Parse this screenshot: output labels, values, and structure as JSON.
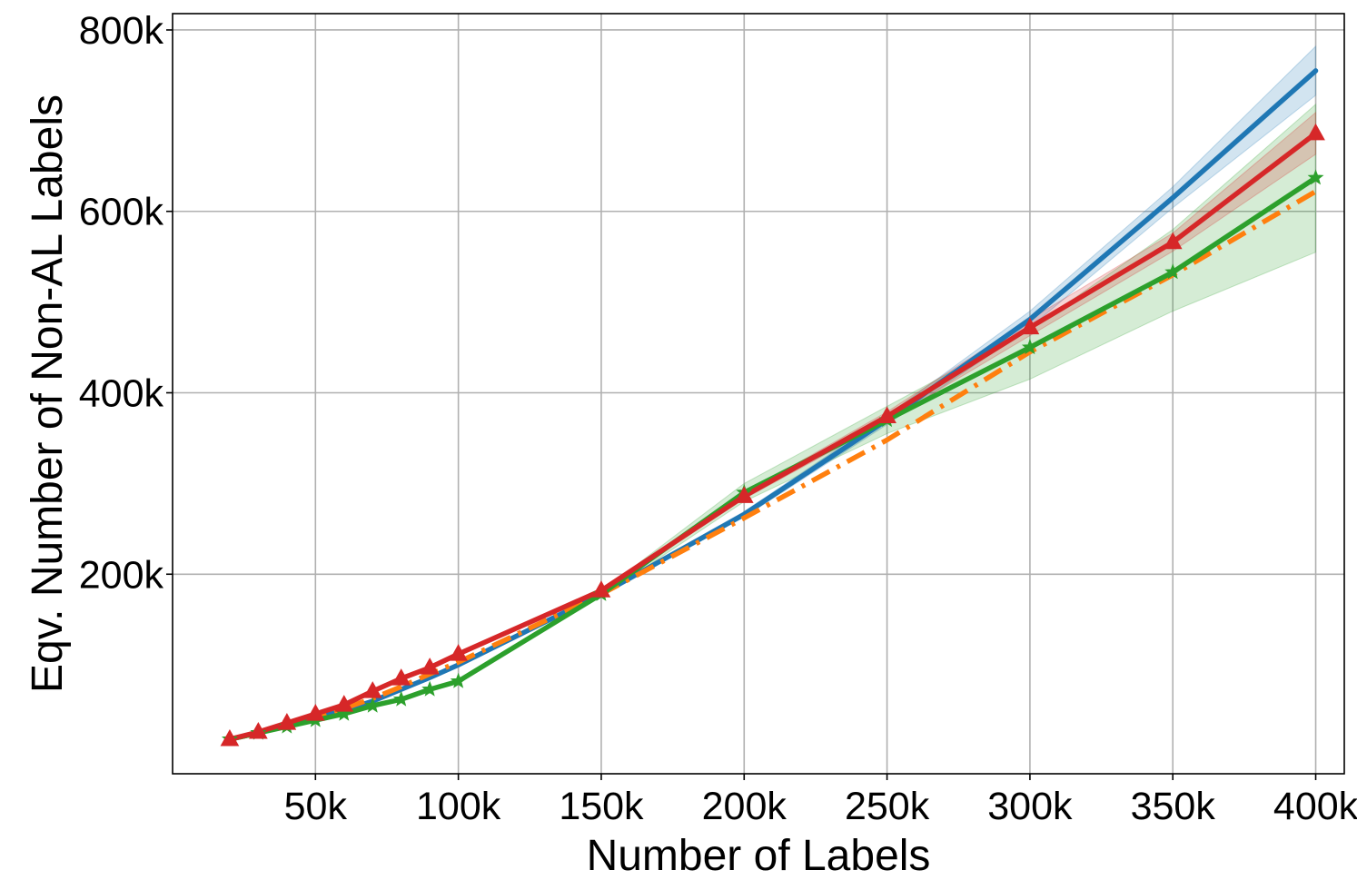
{
  "chart_data": {
    "type": "line",
    "title": "",
    "xlabel": "Number of Labels",
    "ylabel": "Eqv. Number of Non-AL Labels",
    "xlim": [
      0,
      410000
    ],
    "ylim": [
      -20000,
      818000
    ],
    "grid": true,
    "x_ticks": [
      {
        "value": 50000,
        "label": "50k"
      },
      {
        "value": 100000,
        "label": "100k"
      },
      {
        "value": 150000,
        "label": "150k"
      },
      {
        "value": 200000,
        "label": "200k"
      },
      {
        "value": 250000,
        "label": "250k"
      },
      {
        "value": 300000,
        "label": "300k"
      },
      {
        "value": 350000,
        "label": "350k"
      },
      {
        "value": 400000,
        "label": "400k"
      }
    ],
    "y_ticks": [
      {
        "value": 200000,
        "label": "200k"
      },
      {
        "value": 400000,
        "label": "400k"
      },
      {
        "value": 600000,
        "label": "600k"
      },
      {
        "value": 800000,
        "label": "800k"
      }
    ],
    "series": [
      {
        "color": "#1f77b4",
        "style": "solid",
        "marker": "none",
        "x": [
          20000,
          30000,
          40000,
          50000,
          60000,
          70000,
          80000,
          90000,
          100000,
          150000,
          200000,
          250000,
          300000,
          350000,
          400000
        ],
        "values": [
          18000,
          25000,
          33000,
          41000,
          50000,
          60000,
          73000,
          86000,
          100000,
          178000,
          266000,
          370000,
          481000,
          615000,
          755000
        ],
        "band_low": [
          17000,
          24000,
          32000,
          40000,
          49000,
          59000,
          72000,
          85000,
          99000,
          176000,
          263000,
          365000,
          472000,
          604000,
          728000
        ],
        "band_high": [
          19000,
          26000,
          34000,
          42000,
          51000,
          61000,
          74000,
          87000,
          101000,
          180000,
          269000,
          375000,
          490000,
          627000,
          782000
        ]
      },
      {
        "color": "#ff7f0e",
        "style": "dashdot",
        "marker": "none",
        "x": [
          20000,
          30000,
          40000,
          50000,
          60000,
          70000,
          80000,
          90000,
          100000,
          150000,
          200000,
          250000,
          300000,
          350000,
          400000
        ],
        "values": [
          18000,
          25000,
          33000,
          42000,
          52000,
          63000,
          76000,
          90000,
          103000,
          178000,
          262000,
          348000,
          445000,
          530000,
          622000
        ]
      },
      {
        "color": "#2ca02c",
        "style": "solid",
        "marker": "star",
        "x": [
          20000,
          30000,
          40000,
          50000,
          60000,
          70000,
          80000,
          90000,
          100000,
          150000,
          200000,
          250000,
          300000,
          350000,
          400000
        ],
        "values": [
          18000,
          25000,
          32000,
          39000,
          46000,
          55000,
          62000,
          73000,
          82000,
          178000,
          290000,
          370000,
          450000,
          533000,
          637000
        ],
        "band_low": [
          17000,
          24000,
          31000,
          38000,
          45000,
          54000,
          61000,
          72000,
          81000,
          175000,
          280000,
          355000,
          415000,
          490000,
          555000
        ],
        "band_high": [
          19000,
          26000,
          33000,
          40000,
          47000,
          56000,
          63000,
          74000,
          83000,
          181000,
          300000,
          385000,
          470000,
          580000,
          718000
        ]
      },
      {
        "color": "#d62728",
        "style": "solid",
        "marker": "triangle",
        "x": [
          20000,
          30000,
          40000,
          50000,
          60000,
          70000,
          80000,
          90000,
          100000,
          150000,
          200000,
          250000,
          300000,
          350000,
          400000
        ],
        "values": [
          18000,
          26000,
          36000,
          46000,
          56000,
          71000,
          85000,
          97000,
          112000,
          182000,
          286000,
          374000,
          472000,
          566000,
          686000
        ],
        "band_low": [
          17000,
          25000,
          35000,
          45000,
          55000,
          70000,
          84000,
          96000,
          111000,
          180000,
          283000,
          369000,
          463000,
          556000,
          663000
        ],
        "band_high": [
          19000,
          27000,
          37000,
          47000,
          57000,
          72000,
          86000,
          98000,
          113000,
          184000,
          289000,
          379000,
          481000,
          576000,
          709000
        ]
      }
    ]
  }
}
